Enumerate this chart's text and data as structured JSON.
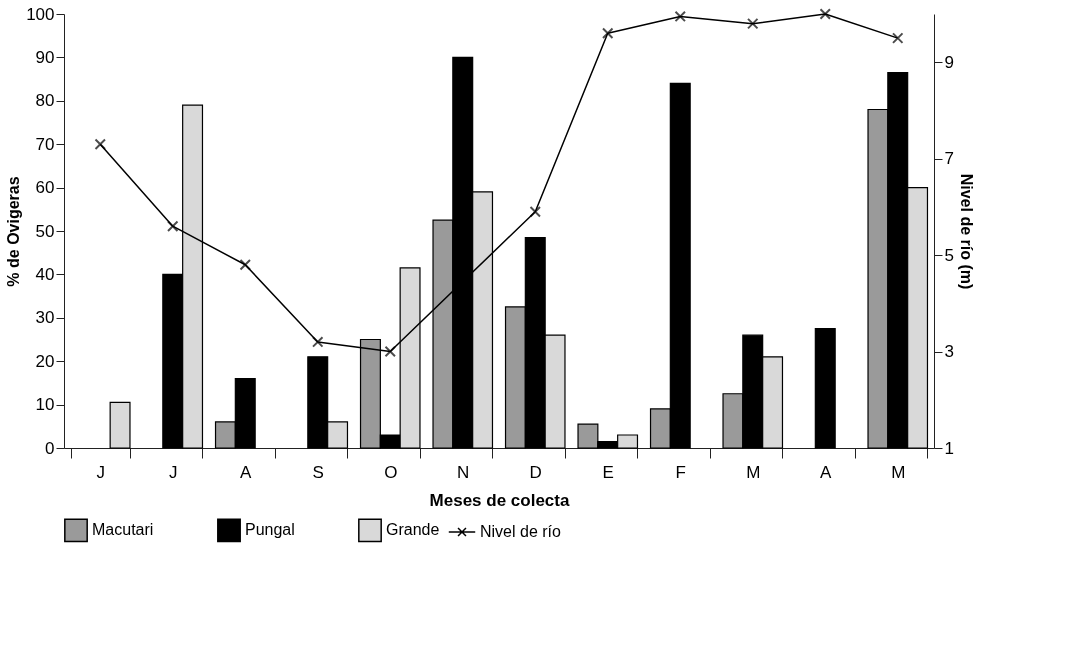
{
  "chart_data": {
    "type": "bar",
    "xlabel": "Meses de colecta",
    "ylabel": "% de Ovigeras",
    "y2label": "Nivel de río (m)",
    "categories": [
      "J",
      "J",
      "A",
      "S",
      "O",
      "N",
      "D",
      "E",
      "F",
      "M",
      "A",
      "M"
    ],
    "series": [
      {
        "name": "Macutari",
        "color": "#9a9a9a",
        "values": [
          null,
          null,
          6,
          null,
          25,
          52.5,
          32.5,
          5.5,
          9,
          12.5,
          null,
          78
        ]
      },
      {
        "name": "Pungal",
        "color": "#000000",
        "values": [
          null,
          40,
          16,
          21,
          3,
          90,
          48.5,
          1.5,
          84,
          26,
          27.5,
          86.5
        ]
      },
      {
        "name": "Grande",
        "color": "#d9d9d9",
        "values": [
          10.5,
          79,
          null,
          6,
          41.5,
          59,
          26,
          3,
          null,
          21,
          null,
          60
        ]
      },
      {
        "name": "Nivel de río",
        "type": "line",
        "axis": "y2",
        "color": "#000000",
        "marker": "cross",
        "values": [
          7.3,
          5.6,
          4.8,
          3.2,
          3.0,
          null,
          5.9,
          9.6,
          9.95,
          9.8,
          10.0,
          9.5
        ]
      }
    ],
    "ylim": [
      0,
      100
    ],
    "yticks": [
      0,
      10,
      20,
      30,
      40,
      50,
      60,
      70,
      80,
      90,
      100
    ],
    "y2lim": [
      1,
      10
    ],
    "y2ticks": [
      1,
      3,
      5,
      7,
      9
    ],
    "grid": false,
    "legend": "bottom"
  }
}
